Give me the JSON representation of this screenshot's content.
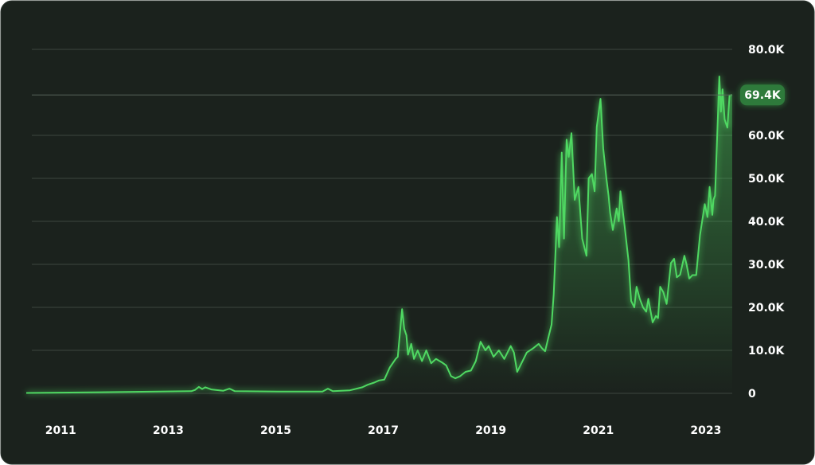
{
  "chart_data": {
    "type": "line",
    "color": "#4fd862",
    "grid": true,
    "x": [
      2010.36,
      2011.36,
      2012.83,
      2013.43,
      2013.5,
      2013.57,
      2013.63,
      2013.69,
      2013.8,
      2014.02,
      2014.14,
      2014.24,
      2015.05,
      2015.87,
      2015.97,
      2016.06,
      2016.38,
      2016.61,
      2016.71,
      2016.83,
      2016.92,
      2017.02,
      2017.12,
      2017.23,
      2017.27,
      2017.35,
      2017.39,
      2017.43,
      2017.46,
      2017.52,
      2017.57,
      2017.64,
      2017.72,
      2017.8,
      2017.89,
      2017.98,
      2018.09,
      2018.17,
      2018.26,
      2018.34,
      2018.43,
      2018.53,
      2018.63,
      2018.72,
      2018.81,
      2018.9,
      2018.96,
      2019.05,
      2019.15,
      2019.25,
      2019.37,
      2019.43,
      2019.49,
      2019.57,
      2019.67,
      2019.79,
      2019.89,
      2019.95,
      2020.01,
      2020.07,
      2020.13,
      2020.17,
      2020.23,
      2020.27,
      2020.32,
      2020.36,
      2020.41,
      2020.45,
      2020.5,
      2020.56,
      2020.63,
      2020.7,
      2020.78,
      2020.82,
      2020.88,
      2020.93,
      2020.97,
      2021.04,
      2021.09,
      2021.15,
      2021.19,
      2021.22,
      2021.27,
      2021.34,
      2021.38,
      2021.41,
      2021.49,
      2021.56,
      2021.61,
      2021.67,
      2021.71,
      2021.77,
      2021.83,
      2021.89,
      2021.93,
      2022.01,
      2022.07,
      2022.11,
      2022.15,
      2022.21,
      2022.27,
      2022.35,
      2022.41,
      2022.46,
      2022.52,
      2022.6,
      2022.64,
      2022.69,
      2022.75,
      2022.82,
      2022.89,
      2022.98,
      2023.03,
      2023.07,
      2023.12,
      2023.14,
      2023.17,
      2023.25,
      2023.28,
      2023.31,
      2023.35,
      2023.4,
      2023.44,
      2023.49
    ],
    "series": [
      {
        "values": [
          100,
          200,
          400,
          500,
          800,
          1500,
          1000,
          1400,
          900,
          600,
          1100,
          500,
          400,
          400,
          1100,
          500,
          700,
          1400,
          2000,
          2500,
          3000,
          3200,
          6000,
          8000,
          8500,
          19600,
          15000,
          13500,
          9000,
          11500,
          8000,
          10000,
          7500,
          10000,
          7000,
          8000,
          7200,
          6500,
          4000,
          3500,
          4000,
          5000,
          5300,
          7500,
          12000,
          10000,
          11000,
          8500,
          10000,
          8000,
          11000,
          9500,
          5000,
          7000,
          9500,
          10500,
          11500,
          10500,
          9800,
          13000,
          16000,
          23000,
          41000,
          34000,
          56000,
          36000,
          59000,
          55000,
          60500,
          45000,
          48000,
          36000,
          32000,
          50000,
          51000,
          47000,
          62000,
          68500,
          57000,
          50000,
          46000,
          42000,
          38000,
          43000,
          40000,
          47000,
          38700,
          31000,
          21500,
          20000,
          24800,
          22000,
          20000,
          19000,
          22000,
          16500,
          18000,
          17500,
          24800,
          23500,
          20800,
          30300,
          31300,
          27000,
          27600,
          32000,
          30000,
          26700,
          27500,
          27500,
          36800,
          44000,
          41000,
          48000,
          41500,
          45000,
          46000,
          73700,
          65500,
          70700,
          63700,
          61800,
          69300,
          69400
        ]
      }
    ],
    "xlim": [
      2010.36,
      2023.49
    ],
    "xticks": [
      2011,
      2013,
      2015,
      2017,
      2019,
      2021,
      2023
    ],
    "ylim": [
      0,
      80000
    ],
    "yticks": [
      0,
      {
        "value": 10000,
        "label": "10.0K"
      },
      {
        "value": 20000,
        "label": "20.0K"
      },
      {
        "value": 30000,
        "label": "30.0K"
      },
      {
        "value": 40000,
        "label": "40.0K"
      },
      {
        "value": 50000,
        "label": "50.0K"
      },
      {
        "value": 60000,
        "label": "60.0K"
      },
      {
        "value": 80000,
        "label": "80.0K"
      }
    ],
    "current": {
      "value": 69400,
      "label": "69.4K"
    }
  }
}
